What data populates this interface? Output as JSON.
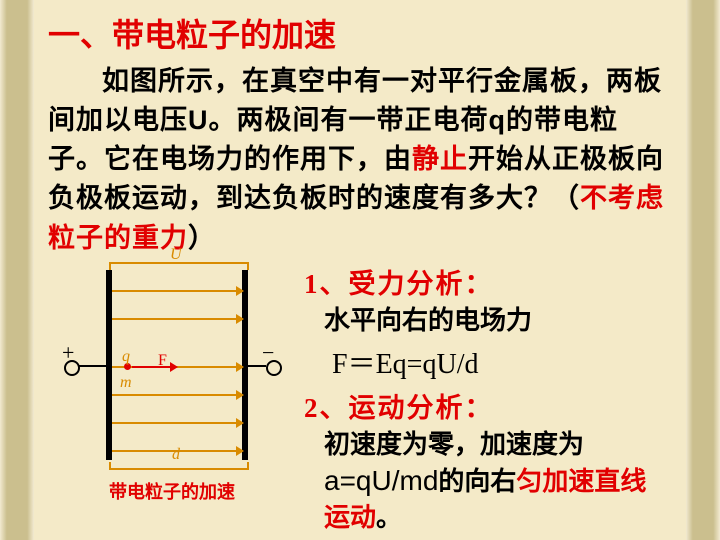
{
  "colors": {
    "background": "#f4eac8",
    "side_band_outer": "#f2ead1",
    "side_band_inner": "#cbbf8e",
    "title_color": "#e10000",
    "text_color": "#000000",
    "highlight_color": "#e10000",
    "ana_head_color": "#e10000",
    "caption_color": "#e10000",
    "plate_color": "#000000",
    "field_color": "#d98b00",
    "bracket_color": "#d98b00",
    "label_color": "#d98b00",
    "particle_color": "#e10000",
    "force_color": "#e10000",
    "force_label_color": "#e10000"
  },
  "title": "一、带电粒子的加速",
  "para": {
    "t1": "如图所示，在真空中有一对平行金属板，两板间加以电压",
    "u": "U",
    "t2": "。两极间有一带正电荷",
    "q": "q",
    "t3": "的带电粒子。它在电场力的作用下，由",
    "rest": "静止",
    "t4": "开始从正极板向负极板运动，到达负板时的速度有多大？（",
    "nog": "不考虑粒子的重力",
    "t5": "）"
  },
  "analysis": {
    "head1": "1、受力分析：",
    "body1": "水平向右的电场力",
    "formula1": "F＝Eq=qU/d",
    "head2": "2、运动分析：",
    "body2a": "初速度为零，加速度为",
    "formula2": "a=qU/md",
    "body2b": "的向右",
    "body2c": "匀加速直线运动",
    "body2d": "。"
  },
  "diagram": {
    "label_U": "U",
    "label_d": "d",
    "label_q": "q",
    "label_m": "m",
    "label_F": "F",
    "sign_plus": "+",
    "sign_minus": "−",
    "caption": "带电粒子的加速",
    "field_line_tops": [
      28,
      56,
      104,
      132,
      160,
      188
    ]
  }
}
